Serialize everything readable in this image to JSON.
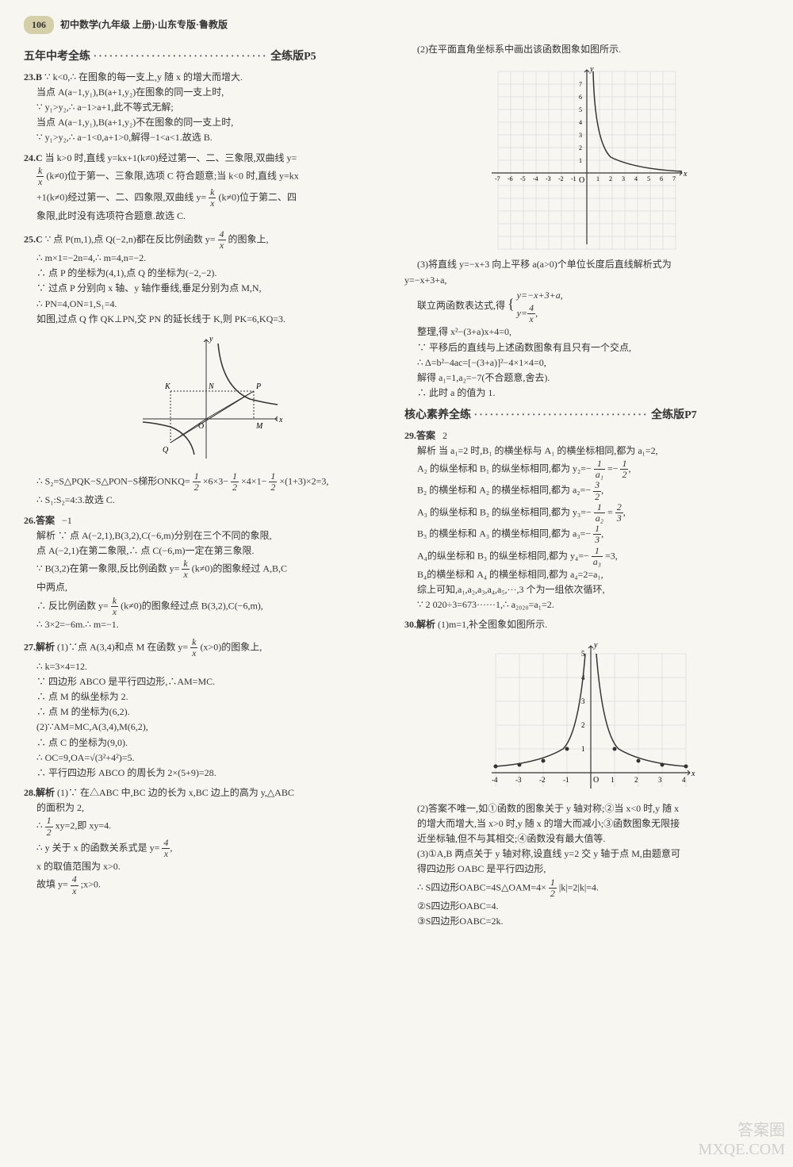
{
  "page_number": "106",
  "header_title": "初中数学(九年级  上册)·山东专版·鲁教版",
  "section1": {
    "title": "五年中考全练",
    "dots": "·································",
    "page_ref": "全练版P5"
  },
  "section2": {
    "title": "核心素养全练",
    "dots": "·································",
    "page_ref": "全练版P7"
  },
  "q23": {
    "num": "23.B",
    "l1": "∵ k<0,∴ 在图象的每一支上,y 随 x 的增大而增大.",
    "l2": "当点 A(a−1,y₁),B(a+1,y₂)在图象的同一支上时,",
    "l3": "∵ y₁>y₂,∴ a−1>a+1,此不等式无解;",
    "l4": "当点 A(a−1,y₁),B(a+1,y₂)不在图象的同一支上时,",
    "l5": "∵ y₁>y₂,∴ a−1<0,a+1>0,解得−1<a<1.故选 B."
  },
  "q24": {
    "num": "24.C",
    "l1": "当 k>0 时,直线 y=kx+1(k≠0)经过第一、二、三象限,双曲线 y=",
    "l2": "(k≠0)位于第一、三象限,选项 C 符合题意;当 k<0 时,直线 y=kx",
    "l3": "+1(k≠0)经过第一、二、四象限,双曲线 y=",
    "l3b": "(k≠0)位于第二、四",
    "l4": "象限,此时没有选项符合题意.故选 C."
  },
  "q25": {
    "num": "25.C",
    "l1": "∵ 点 P(m,1),点 Q(−2,n)都在反比例函数 y=",
    "l1b": "的图象上,",
    "l2": "∴ m×1=−2n=4,∴ m=4,n=−2.",
    "l3": "∴ 点 P 的坐标为(4,1),点 Q 的坐标为(−2,−2).",
    "l4": "∵ 过点 P 分别向 x 轴、y 轴作垂线,垂足分别为点 M,N,",
    "l5": "∴ PN=4,ON=1,S₁=4.",
    "l6": "如图,过点 Q 作 QK⊥PN,交 PN 的延长线于 K,则 PK=6,KQ=3.",
    "l7": "∴ S₂=S△PQK−S△PON−S梯形ONKQ=",
    "l7b": "×6×3−",
    "l7c": "×4×1−",
    "l7d": "×(1+3)×2=3,",
    "l8": "∴ S₁:S₂=4:3.故选 C."
  },
  "q26": {
    "num": "26.答案",
    "ans": "−1",
    "l1": "解析  ∵ 点 A(−2,1),B(3,2),C(−6,m)分别在三个不同的象限,",
    "l2": "点 A(−2,1)在第二象限,∴ 点 C(−6,m)一定在第三象限.",
    "l3": "∵ B(3,2)在第一象限,反比例函数 y=",
    "l3b": "(k≠0)的图象经过 A,B,C",
    "l4": "中两点,",
    "l5": "∴ 反比例函数 y=",
    "l5b": "(k≠0)的图象经过点 B(3,2),C(−6,m),",
    "l6": "∴ 3×2=−6m.∴ m=−1."
  },
  "q27": {
    "num": "27.解析",
    "l1": "(1)∵点 A(3,4)和点 M 在函数 y=",
    "l1b": "(x>0)的图象上,",
    "l2": "∴ k=3×4=12.",
    "l3": "∵ 四边形 ABCO 是平行四边形,∴AM=MC.",
    "l4": "∴ 点 M 的纵坐标为 2.",
    "l5": "∴ 点 M 的坐标为(6,2).",
    "l6": "(2)∵AM=MC,A(3,4),M(6,2),",
    "l7": "∴ 点 C 的坐标为(9,0).",
    "l8": "∴ OC=9,OA=√(3²+4²)=5.",
    "l9": "∴ 平行四边形 ABCO 的周长为 2×(5+9)=28."
  },
  "q28": {
    "num": "28.解析",
    "l1": "(1)∵ 在△ABC 中,BC 边的长为 x,BC 边上的高为 y,△ABC",
    "l2": "的面积为 2,",
    "l3": "∴",
    "l3b": "xy=2,即 xy=4.",
    "l4": "∴ y 关于 x 的函数关系式是 y=",
    "l5": "x 的取值范围为 x>0.",
    "l6": "故填 y=",
    "l6b": ";x>0."
  },
  "q28r": {
    "l1": "(2)在平面直角坐标系中画出该函数图象如图所示.",
    "l2": "(3)将直线 y=−x+3 向上平移 a(a>0)个单位长度后直线解析式为",
    "l3": "y=−x+3+a,",
    "l4": "联立两函数表达式,得",
    "l5": "整理,得 x²−(3+a)x+4=0,",
    "l6": "∵ 平移后的直线与上述函数图象有且只有一个交点,",
    "l7": "∴ Δ=b²−4ac=[−(3+a)]²−4×1×4=0,",
    "l8": "解得 a₁=1,a₂=−7(不合题意,舍去).",
    "l9": "∴ 此时 a 的值为 1."
  },
  "q29": {
    "num": "29.答案",
    "ans": "2",
    "l0": "解析  当 a₁=2 时,B₁ 的横坐标与 A₁ 的横坐标相同,都为 a₁=2,",
    "l1": "A₂ 的纵坐标和 B₁ 的纵坐标相同,都为 y₂=−",
    "l1b": "=−",
    "l2": "B₂ 的横坐标和 A₂ 的横坐标相同,都为 a₂=−",
    "l3": "A₃ 的纵坐标和 B₂ 的纵坐标相同,都为 y₃=−",
    "l3b": "=",
    "l4": "B₃ 的横坐标和 A₃ 的横坐标相同,都为 a₃=−",
    "l5": "A₄的纵坐标和 B₃ 的纵坐标相同,都为 y₄=−",
    "l5b": "=3,",
    "l6": "B₄的横坐标和 A₄ 的横坐标相同,都为 a₄=2=a₁,",
    "l7": "综上可知,a₁,a₂,a₃,a₄,a₅,···,3 个为一组依次循环,",
    "l8": "∵ 2 020÷3=673······1,∴ a₂₀₂₀=a₁=2."
  },
  "q30": {
    "num": "30.解析",
    "l1": "(1)m=1,补全图象如图所示.",
    "l2": "(2)答案不唯一,如①函数的图象关于 y 轴对称;②当 x<0 时,y 随 x",
    "l3": "的增大而增大,当 x>0 时,y 随 x 的增大而减小;③函数图象无限接",
    "l4": "近坐标轴,但不与其相交;④函数没有最大值等.",
    "l5": "(3)①A,B 两点关于 y 轴对称,设直线 y=2 交 y 轴于点 M,由题意可",
    "l6": "得四边形 OABC 是平行四边形,",
    "l7": "∴ S四边形OABC=4S△OAM=4×",
    "l7b": "|k|=2|k|=4.",
    "l8": "②S四边形OABC=4.",
    "l9": "③S四边形OABC=2k."
  },
  "graph1": {
    "x_range": [
      -7,
      7
    ],
    "y_range": [
      -7,
      8
    ],
    "curve_points_x": [
      0.5,
      0.57,
      0.7,
      1,
      1.5,
      2,
      3,
      4,
      5,
      6,
      7
    ],
    "curve_points_y": [
      8,
      7,
      5.7,
      4,
      2.67,
      2,
      1.33,
      1,
      0.8,
      0.67,
      0.57
    ],
    "grid_color": "#d0d0d0",
    "axis_color": "#333",
    "curve_color": "#333"
  },
  "graph2": {
    "labels": [
      "K",
      "N",
      "P",
      "O",
      "M",
      "Q",
      "x",
      "y"
    ],
    "axis_color": "#333",
    "curve_color": "#333"
  },
  "graph3": {
    "x_range": [
      -4,
      4
    ],
    "y_range": [
      -1,
      5
    ],
    "left_curve_x": [
      -4,
      -3,
      -2,
      -1,
      -0.5,
      -0.25
    ],
    "left_curve_y": [
      0.25,
      0.33,
      0.5,
      1,
      2,
      4
    ],
    "right_curve_x": [
      0.25,
      0.5,
      1,
      2,
      3,
      4
    ],
    "right_curve_y": [
      4,
      2,
      1,
      0.5,
      0.33,
      0.25
    ],
    "grid_color": "#d0d0d0",
    "axis_color": "#333",
    "curve_color": "#333",
    "point_color": "#333"
  },
  "footer": {
    "l1": "答案圈",
    "l2": "MXQE.COM"
  }
}
